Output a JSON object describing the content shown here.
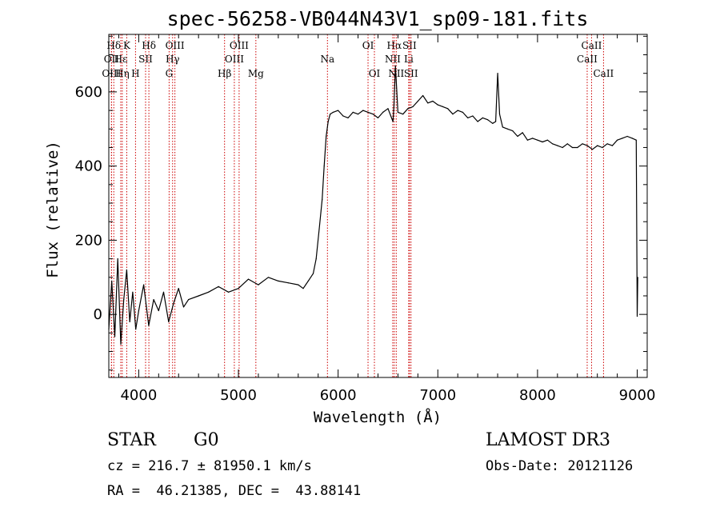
{
  "chart_data": {
    "type": "line",
    "title": "spec-56258-VB044N43V1_sp09-181.fits",
    "xlabel": "Wavelength (Å)",
    "ylabel": "Flux (relative)",
    "xlim": [
      3700,
      9100
    ],
    "ylim": [
      -170,
      755
    ],
    "xticks": [
      4000,
      5000,
      6000,
      7000,
      8000,
      9000
    ],
    "yticks": [
      0,
      200,
      400,
      600
    ],
    "line_color": "#000000",
    "marker_color": "#cc0000",
    "series": [
      {
        "x": [
          3700,
          3730,
          3760,
          3790,
          3820,
          3850,
          3880,
          3910,
          3940,
          3970,
          4000,
          4050,
          4100,
          4150,
          4200,
          4250,
          4300,
          4350,
          4400,
          4450,
          4500,
          4600,
          4700,
          4800,
          4900,
          5000,
          5100,
          5200,
          5300,
          5400,
          5500,
          5600,
          5650,
          5700,
          5750,
          5780,
          5810,
          5840,
          5860,
          5880,
          5900,
          5920,
          5950,
          6000,
          6050,
          6100,
          6150,
          6200,
          6250,
          6300,
          6350,
          6400,
          6450,
          6500,
          6550,
          6560,
          6575,
          6600,
          6650,
          6700,
          6750,
          6800,
          6850,
          6900,
          6950,
          7000,
          7050,
          7100,
          7150,
          7200,
          7250,
          7300,
          7350,
          7400,
          7450,
          7500,
          7550,
          7580,
          7600,
          7620,
          7650,
          7700,
          7750,
          7800,
          7850,
          7900,
          7950,
          8000,
          8050,
          8100,
          8150,
          8200,
          8250,
          8300,
          8350,
          8400,
          8450,
          8500,
          8550,
          8600,
          8650,
          8700,
          8750,
          8800,
          8850,
          8900,
          8950,
          8990,
          9000,
          9005
        ],
        "y": [
          -40,
          90,
          -60,
          150,
          -80,
          40,
          120,
          -20,
          60,
          -40,
          10,
          80,
          -30,
          40,
          10,
          60,
          -20,
          30,
          70,
          20,
          40,
          50,
          60,
          75,
          60,
          70,
          95,
          80,
          100,
          90,
          85,
          80,
          70,
          90,
          110,
          150,
          230,
          310,
          400,
          480,
          520,
          540,
          545,
          550,
          535,
          530,
          545,
          540,
          550,
          545,
          540,
          530,
          545,
          555,
          520,
          560,
          670,
          545,
          540,
          555,
          560,
          575,
          590,
          570,
          575,
          565,
          560,
          555,
          540,
          550,
          545,
          530,
          535,
          520,
          530,
          525,
          515,
          520,
          650,
          540,
          505,
          500,
          495,
          480,
          490,
          470,
          475,
          470,
          465,
          470,
          460,
          455,
          450,
          460,
          450,
          450,
          460,
          455,
          445,
          455,
          450,
          460,
          455,
          470,
          475,
          480,
          475,
          470,
          -5,
          100
        ]
      }
    ],
    "line_markers": [
      {
        "label": "Hδ",
        "x": 3750,
        "row": 1
      },
      {
        "label": "K",
        "x": 3880,
        "row": 1
      },
      {
        "label": "Hδ",
        "x": 4102,
        "row": 1
      },
      {
        "label": "OIII",
        "x": 4363,
        "row": 1
      },
      {
        "label": "OIII",
        "x": 5007,
        "row": 1
      },
      {
        "label": "OI",
        "x": 6300,
        "row": 1
      },
      {
        "label": "Hα",
        "x": 6563,
        "row": 1
      },
      {
        "label": "SII",
        "x": 6716,
        "row": 1
      },
      {
        "label": "CaII",
        "x": 8542,
        "row": 1
      },
      {
        "label": "OII",
        "x": 3727,
        "row": 2
      },
      {
        "label": "Hε",
        "x": 3820,
        "row": 2
      },
      {
        "label": "SII",
        "x": 4069,
        "row": 2
      },
      {
        "label": "Hγ",
        "x": 4340,
        "row": 2
      },
      {
        "label": "OIII",
        "x": 4959,
        "row": 2
      },
      {
        "label": "Na",
        "x": 5893,
        "row": 2
      },
      {
        "label": "NII",
        "x": 6548,
        "row": 2
      },
      {
        "label": "Li",
        "x": 6708,
        "row": 2
      },
      {
        "label": "CaII",
        "x": 8498,
        "row": 2
      },
      {
        "label": "OIII",
        "x": 3727,
        "row": 3
      },
      {
        "label": "Hη",
        "x": 3835,
        "row": 3
      },
      {
        "label": "H",
        "x": 3968,
        "row": 3
      },
      {
        "label": "G",
        "x": 4305,
        "row": 3
      },
      {
        "label": "Hβ",
        "x": 4861,
        "row": 3
      },
      {
        "label": "Mg",
        "x": 5175,
        "row": 3
      },
      {
        "label": "OI",
        "x": 6364,
        "row": 3
      },
      {
        "label": "NII",
        "x": 6583,
        "row": 3
      },
      {
        "label": "SII",
        "x": 6731,
        "row": 3
      },
      {
        "label": "CaII",
        "x": 8662,
        "row": 3
      }
    ]
  },
  "info": {
    "object_class": "STAR",
    "subclass": "G0",
    "survey": "LAMOST DR3",
    "cz": "cz = 216.7 ± 81950.1 km/s",
    "obs_date": "Obs-Date: 20121126",
    "coords": "RA =  46.21385, DEC =  43.88141"
  }
}
